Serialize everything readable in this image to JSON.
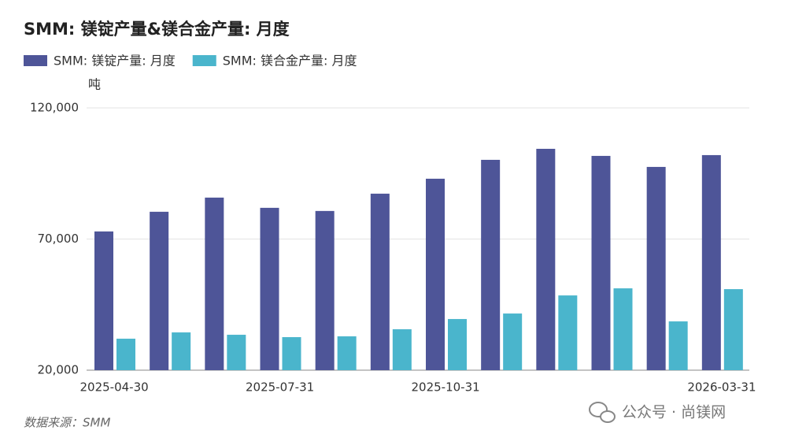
{
  "chart_data": {
    "type": "bar",
    "title": "SMM: 镁锭产量&镁合金产量: 月度",
    "y_unit": "吨",
    "source": "数据来源：SMM",
    "watermark": "公众号 · 尚镁网",
    "categories": [
      "2025-04-30",
      null,
      null,
      "2025-07-31",
      null,
      null,
      "2025-10-31",
      null,
      null,
      null,
      null,
      "2026-03-31"
    ],
    "series": [
      {
        "name": "SMM: 镁锭产量: 月度",
        "color": "#4e5598",
        "values": [
          72900,
          80400,
          85800,
          81900,
          80700,
          87300,
          93000,
          100200,
          104400,
          101700,
          97500,
          102000
        ]
      },
      {
        "name": "SMM: 镁合金产量: 月度",
        "color": "#4ab5cc",
        "values": [
          32000,
          34400,
          33500,
          32600,
          32900,
          35600,
          39500,
          41600,
          48500,
          51200,
          38600,
          50900
        ]
      }
    ],
    "ylim": [
      20000,
      120000
    ],
    "yticks": [
      {
        "value": 20000,
        "label": "20,000"
      },
      {
        "value": 70000,
        "label": "70,000"
      },
      {
        "value": 120000,
        "label": "120,000"
      }
    ],
    "grid": true
  }
}
